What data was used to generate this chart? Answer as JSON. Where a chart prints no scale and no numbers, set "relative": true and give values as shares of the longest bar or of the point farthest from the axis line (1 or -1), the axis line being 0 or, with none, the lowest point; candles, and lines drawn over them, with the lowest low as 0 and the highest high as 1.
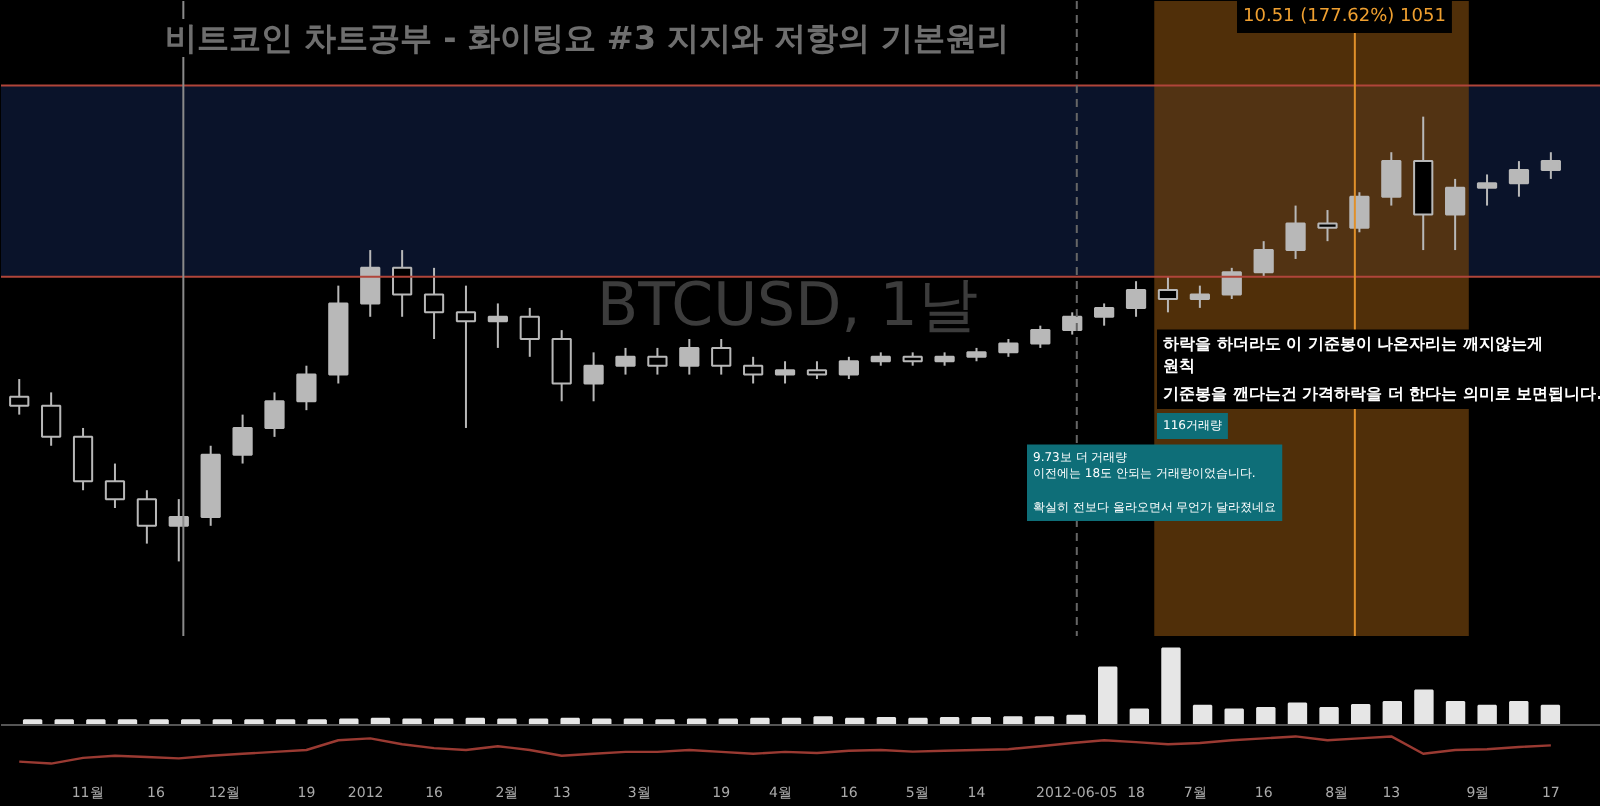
{
  "chart_data": [
    {
      "type": "candlestick",
      "title": "비트코인 차트공부 - 화이팅요 #3 지지와 저항의 기본원리",
      "relative": true,
      "color": "#b8b8b8",
      "tick_labels": false,
      "grid": false,
      "xlim": [
        "2011-10-13",
        "2012-09-28"
      ],
      "x": [
        "2011-10-17",
        "2011-10-24",
        "2011-10-31",
        "2011-11-07",
        "2011-11-14",
        "2011-11-21",
        "2011-11-28",
        "2011-12-05",
        "2011-12-12",
        "2011-12-19",
        "2011-12-26",
        "2012-01-02",
        "2012-01-09",
        "2012-01-16",
        "2012-01-23",
        "2012-01-30",
        "2012-02-06",
        "2012-02-13",
        "2012-02-20",
        "2012-02-27",
        "2012-03-05",
        "2012-03-12",
        "2012-03-19",
        "2012-03-26",
        "2012-04-02",
        "2012-04-09",
        "2012-04-16",
        "2012-04-23",
        "2012-04-30",
        "2012-05-07",
        "2012-05-14",
        "2012-05-21",
        "2012-05-28",
        "2012-06-04",
        "2012-06-11",
        "2012-06-18",
        "2012-06-25",
        "2012-07-02",
        "2012-07-09",
        "2012-07-16",
        "2012-07-23",
        "2012-07-30",
        "2012-08-06",
        "2012-08-13",
        "2012-08-20",
        "2012-08-27",
        "2012-09-03",
        "2012-09-10",
        "2012-09-17"
      ],
      "ohlc": [
        [
          0.37,
          0.41,
          0.33,
          0.35
        ],
        [
          0.35,
          0.38,
          0.26,
          0.28
        ],
        [
          0.28,
          0.3,
          0.16,
          0.18
        ],
        [
          0.18,
          0.22,
          0.12,
          0.14
        ],
        [
          0.14,
          0.16,
          0.04,
          0.08
        ],
        [
          0.08,
          0.14,
          0,
          0.1
        ],
        [
          0.1,
          0.26,
          0.08,
          0.24
        ],
        [
          0.24,
          0.33,
          0.22,
          0.3
        ],
        [
          0.3,
          0.38,
          0.28,
          0.36
        ],
        [
          0.36,
          0.44,
          0.34,
          0.42
        ],
        [
          0.42,
          0.62,
          0.4,
          0.58
        ],
        [
          0.58,
          0.7,
          0.55,
          0.66
        ],
        [
          0.66,
          0.7,
          0.55,
          0.6
        ],
        [
          0.6,
          0.66,
          0.5,
          0.56
        ],
        [
          0.56,
          0.62,
          0.3,
          0.54
        ],
        [
          0.54,
          0.58,
          0.48,
          0.55
        ],
        [
          0.55,
          0.57,
          0.46,
          0.5
        ],
        [
          0.5,
          0.52,
          0.36,
          0.4
        ],
        [
          0.4,
          0.47,
          0.36,
          0.44
        ],
        [
          0.44,
          0.48,
          0.42,
          0.46
        ],
        [
          0.46,
          0.48,
          0.42,
          0.44
        ],
        [
          0.44,
          0.5,
          0.42,
          0.48
        ],
        [
          0.48,
          0.5,
          0.42,
          0.44
        ],
        [
          0.44,
          0.46,
          0.4,
          0.42
        ],
        [
          0.42,
          0.45,
          0.4,
          0.43
        ],
        [
          0.43,
          0.45,
          0.41,
          0.42
        ],
        [
          0.42,
          0.46,
          0.41,
          0.45
        ],
        [
          0.45,
          0.47,
          0.44,
          0.46
        ],
        [
          0.46,
          0.47,
          0.44,
          0.45
        ],
        [
          0.45,
          0.47,
          0.44,
          0.46
        ],
        [
          0.46,
          0.48,
          0.45,
          0.47
        ],
        [
          0.47,
          0.5,
          0.46,
          0.49
        ],
        [
          0.49,
          0.53,
          0.48,
          0.52
        ],
        [
          0.52,
          0.56,
          0.51,
          0.55
        ],
        [
          0.55,
          0.58,
          0.53,
          0.57
        ],
        [
          0.57,
          0.63,
          0.55,
          0.61
        ],
        [
          0.61,
          0.64,
          0.56,
          0.59
        ],
        [
          0.59,
          0.62,
          0.57,
          0.6
        ],
        [
          0.6,
          0.66,
          0.59,
          0.65
        ],
        [
          0.65,
          0.72,
          0.64,
          0.7
        ],
        [
          0.7,
          0.8,
          0.68,
          0.76
        ],
        [
          0.76,
          0.79,
          0.72,
          0.75
        ],
        [
          0.75,
          0.83,
          0.74,
          0.82
        ],
        [
          0.82,
          0.92,
          0.8,
          0.9
        ],
        [
          0.9,
          1.0,
          0.7,
          0.78
        ],
        [
          0.78,
          0.86,
          0.7,
          0.84
        ],
        [
          0.84,
          0.87,
          0.8,
          0.85
        ],
        [
          0.85,
          0.9,
          0.82,
          0.88
        ],
        [
          0.88,
          0.92,
          0.86,
          0.9
        ]
      ],
      "bands": [
        {
          "axis": "y",
          "from": 0.64,
          "to": 1.07,
          "color": "#0c1631",
          "label": null
        },
        {
          "axis": "x",
          "from": "2012-06-22",
          "to": "2012-08-30",
          "color": "#6b3f0c",
          "label": null
        }
      ],
      "ref_lines": [
        {
          "axis": "y",
          "value": 1.07,
          "color": "#b0453a",
          "label": null
        },
        {
          "axis": "y",
          "value": 0.64,
          "color": "#b0453a",
          "label": null
        },
        {
          "axis": "x",
          "value": "2011-11-22",
          "color": "#8a8a8a",
          "label": null
        },
        {
          "axis": "x",
          "value": "2012-08-05",
          "color": "#e0902a",
          "label": null
        },
        {
          "axis": "x",
          "value": "2012-06-05",
          "color": "#666666",
          "line_style": "dashed",
          "label": null
        }
      ],
      "annotations": [
        "10.51 (177.62%) 1051",
        "BTCUSD, 1날",
        "하락을 하더라도 이 기준봉이 나온자리는 깨지않는게\n원칙",
        "기준봉을 깬다는건 가격하락을 더 한다는 의미로 보면됩니다.",
        "116거래량",
        "9.73보 더 거래량\n이전에는 18도 안되는 거래량이었습니다.\n\n확실히 전보다 올라오면서 무언가 달라졌네요"
      ]
    },
    {
      "type": "bar",
      "relative": true,
      "color": "#e6e6e6",
      "grid": false,
      "categories": [
        null,
        null,
        null,
        null,
        null,
        null,
        null,
        null,
        null,
        null,
        null,
        null,
        null,
        null,
        null,
        null,
        null,
        null,
        null,
        null,
        null,
        null,
        null,
        null,
        null,
        null,
        null,
        null,
        null,
        null,
        null,
        null,
        null,
        null,
        null,
        null,
        null,
        null,
        null,
        null,
        null,
        null,
        null,
        null,
        null,
        null,
        null,
        null,
        null
      ],
      "values": [
        0.06,
        0.06,
        0.06,
        0.06,
        0.06,
        0.06,
        0.06,
        0.06,
        0.06,
        0.06,
        0.07,
        0.08,
        0.07,
        0.07,
        0.08,
        0.07,
        0.07,
        0.08,
        0.07,
        0.07,
        0.06,
        0.07,
        0.07,
        0.08,
        0.08,
        0.1,
        0.08,
        0.09,
        0.08,
        0.09,
        0.09,
        0.1,
        0.1,
        0.12,
        0.75,
        0.2,
        1.0,
        0.25,
        0.2,
        0.22,
        0.28,
        0.22,
        0.26,
        0.3,
        0.45,
        0.3,
        0.25,
        0.3,
        0.25
      ]
    },
    {
      "type": "line",
      "relative": true,
      "color": "#9a3a32",
      "tick_labels": "x",
      "grid": false,
      "xlim": [
        "2011-10-13",
        "2012-09-28"
      ],
      "xticks": [
        {
          "value": "2011-11-01",
          "label": "11월"
        },
        {
          "value": "2011-11-16",
          "label": "16"
        },
        {
          "value": "2011-12-01",
          "label": "12월"
        },
        {
          "value": "2011-12-19",
          "label": "19"
        },
        {
          "value": "2012-01-01",
          "label": "2012"
        },
        {
          "value": "2012-01-16",
          "label": "16"
        },
        {
          "value": "2012-02-01",
          "label": "2월"
        },
        {
          "value": "2012-02-13",
          "label": "13"
        },
        {
          "value": "2012-03-01",
          "label": "3월"
        },
        {
          "value": "2012-03-19",
          "label": "19"
        },
        {
          "value": "2012-04-01",
          "label": "4월"
        },
        {
          "value": "2012-04-16",
          "label": "16"
        },
        {
          "value": "2012-05-01",
          "label": "5월"
        },
        {
          "value": "2012-05-14",
          "label": "14"
        },
        {
          "value": "2012-06-05",
          "label": "2012-06-05"
        },
        {
          "value": "2012-06-18",
          "label": "18"
        },
        {
          "value": "2012-07-01",
          "label": "7월"
        },
        {
          "value": "2012-07-16",
          "label": "16"
        },
        {
          "value": "2012-08-01",
          "label": "8월"
        },
        {
          "value": "2012-08-13",
          "label": "13"
        },
        {
          "value": "2012-09-01",
          "label": "9월"
        },
        {
          "value": "2012-09-17",
          "label": "17"
        }
      ],
      "x": [
        "2011-10-17",
        "2011-10-24",
        "2011-10-31",
        "2011-11-07",
        "2011-11-14",
        "2011-11-21",
        "2011-11-28",
        "2011-12-05",
        "2011-12-12",
        "2011-12-19",
        "2011-12-26",
        "2012-01-02",
        "2012-01-09",
        "2012-01-16",
        "2012-01-23",
        "2012-01-30",
        "2012-02-06",
        "2012-02-13",
        "2012-02-20",
        "2012-02-27",
        "2012-03-05",
        "2012-03-12",
        "2012-03-19",
        "2012-03-26",
        "2012-04-02",
        "2012-04-09",
        "2012-04-16",
        "2012-04-23",
        "2012-04-30",
        "2012-05-07",
        "2012-05-14",
        "2012-05-21",
        "2012-05-28",
        "2012-06-04",
        "2012-06-11",
        "2012-06-18",
        "2012-06-25",
        "2012-07-02",
        "2012-07-09",
        "2012-07-16",
        "2012-07-23",
        "2012-07-30",
        "2012-08-06",
        "2012-08-13",
        "2012-08-20",
        "2012-08-27",
        "2012-09-03",
        "2012-09-10",
        "2012-09-17"
      ],
      "values": [
        0.07,
        0,
        0.21,
        0.29,
        0.24,
        0.19,
        0.29,
        0.36,
        0.43,
        0.5,
        0.86,
        0.93,
        0.71,
        0.57,
        0.5,
        0.64,
        0.5,
        0.29,
        0.36,
        0.43,
        0.43,
        0.5,
        0.43,
        0.36,
        0.43,
        0.39,
        0.47,
        0.5,
        0.44,
        0.47,
        0.5,
        0.53,
        0.64,
        0.76,
        0.86,
        0.79,
        0.71,
        0.76,
        0.86,
        0.93,
        1,
        0.86,
        0.93,
        1,
        0.36,
        0.5,
        0.53,
        0.61,
        0.67
      ]
    }
  ]
}
